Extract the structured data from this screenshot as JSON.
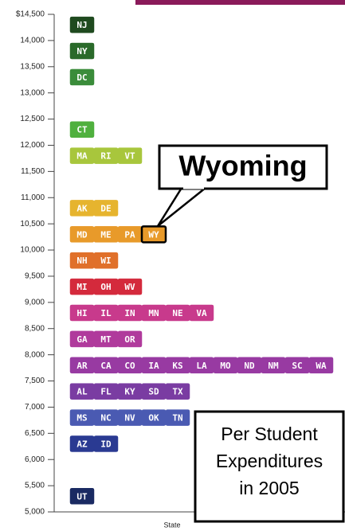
{
  "chart_data": {
    "type": "tile",
    "x_label": "State",
    "callout": "Wyoming",
    "highlight": "WY",
    "caption": [
      "Per Student",
      "Expenditures",
      "in 2005"
    ],
    "ylim": [
      5000,
      14500
    ],
    "yticks": [
      {
        "value": 14500,
        "label": "$14,500"
      },
      {
        "value": 14000,
        "label": "14,000"
      },
      {
        "value": 13500,
        "label": "13,500"
      },
      {
        "value": 13000,
        "label": "13,000"
      },
      {
        "value": 12500,
        "label": "12,500"
      },
      {
        "value": 12000,
        "label": "12,000"
      },
      {
        "value": 11500,
        "label": "11,500"
      },
      {
        "value": 11000,
        "label": "11,000"
      },
      {
        "value": 10500,
        "label": "10,500"
      },
      {
        "value": 10000,
        "label": "10,000"
      },
      {
        "value": 9500,
        "label": "9,500"
      },
      {
        "value": 9000,
        "label": "9,000"
      },
      {
        "value": 8500,
        "label": "8,500"
      },
      {
        "value": 8000,
        "label": "8,000"
      },
      {
        "value": 7500,
        "label": "7,500"
      },
      {
        "value": 7000,
        "label": "7,000"
      },
      {
        "value": 6500,
        "label": "6,500"
      },
      {
        "value": 6000,
        "label": "6,000"
      },
      {
        "value": 5500,
        "label": "5,500"
      },
      {
        "value": 5000,
        "label": "5,000"
      }
    ],
    "rows": [
      {
        "states": [
          "NJ"
        ],
        "value": 14300,
        "color": "#1f4a1f"
      },
      {
        "states": [
          "NY"
        ],
        "value": 13800,
        "color": "#2a6a2a"
      },
      {
        "states": [
          "DC"
        ],
        "value": 13300,
        "color": "#3a8c3a"
      },
      {
        "states": [
          "CT"
        ],
        "value": 12300,
        "color": "#4fb03e"
      },
      {
        "states": [
          "MA",
          "RI",
          "VT"
        ],
        "value": 11800,
        "color": "#a8c63c"
      },
      {
        "states": [
          "AK",
          "DE"
        ],
        "value": 10800,
        "color": "#e6b42e"
      },
      {
        "states": [
          "MD",
          "ME",
          "PA",
          "WY"
        ],
        "value": 10300,
        "color": "#e89a2a"
      },
      {
        "states": [
          "NH",
          "WI"
        ],
        "value": 9800,
        "color": "#e0702a"
      },
      {
        "states": [
          "MI",
          "OH",
          "WV"
        ],
        "value": 9300,
        "color": "#d42a3c"
      },
      {
        "states": [
          "HI",
          "IL",
          "IN",
          "MN",
          "NE",
          "VA"
        ],
        "value": 8800,
        "color": "#c83a8c"
      },
      {
        "states": [
          "GA",
          "MT",
          "OR"
        ],
        "value": 8300,
        "color": "#b03a9c"
      },
      {
        "states": [
          "AR",
          "CA",
          "CO",
          "IA",
          "KS",
          "LA",
          "MO",
          "ND",
          "NM",
          "SC",
          "WA"
        ],
        "value": 7800,
        "color": "#983aa2"
      },
      {
        "states": [
          "AL",
          "FL",
          "KY",
          "SD",
          "TX"
        ],
        "value": 7300,
        "color": "#7a3ca2"
      },
      {
        "states": [
          "MS",
          "NC",
          "NV",
          "OK",
          "TN"
        ],
        "value": 6800,
        "color": "#4a5ab2"
      },
      {
        "states": [
          "AZ",
          "ID"
        ],
        "value": 6300,
        "color": "#2a3a92"
      },
      {
        "states": [
          "UT"
        ],
        "value": 5300,
        "color": "#1a2a62"
      }
    ]
  }
}
